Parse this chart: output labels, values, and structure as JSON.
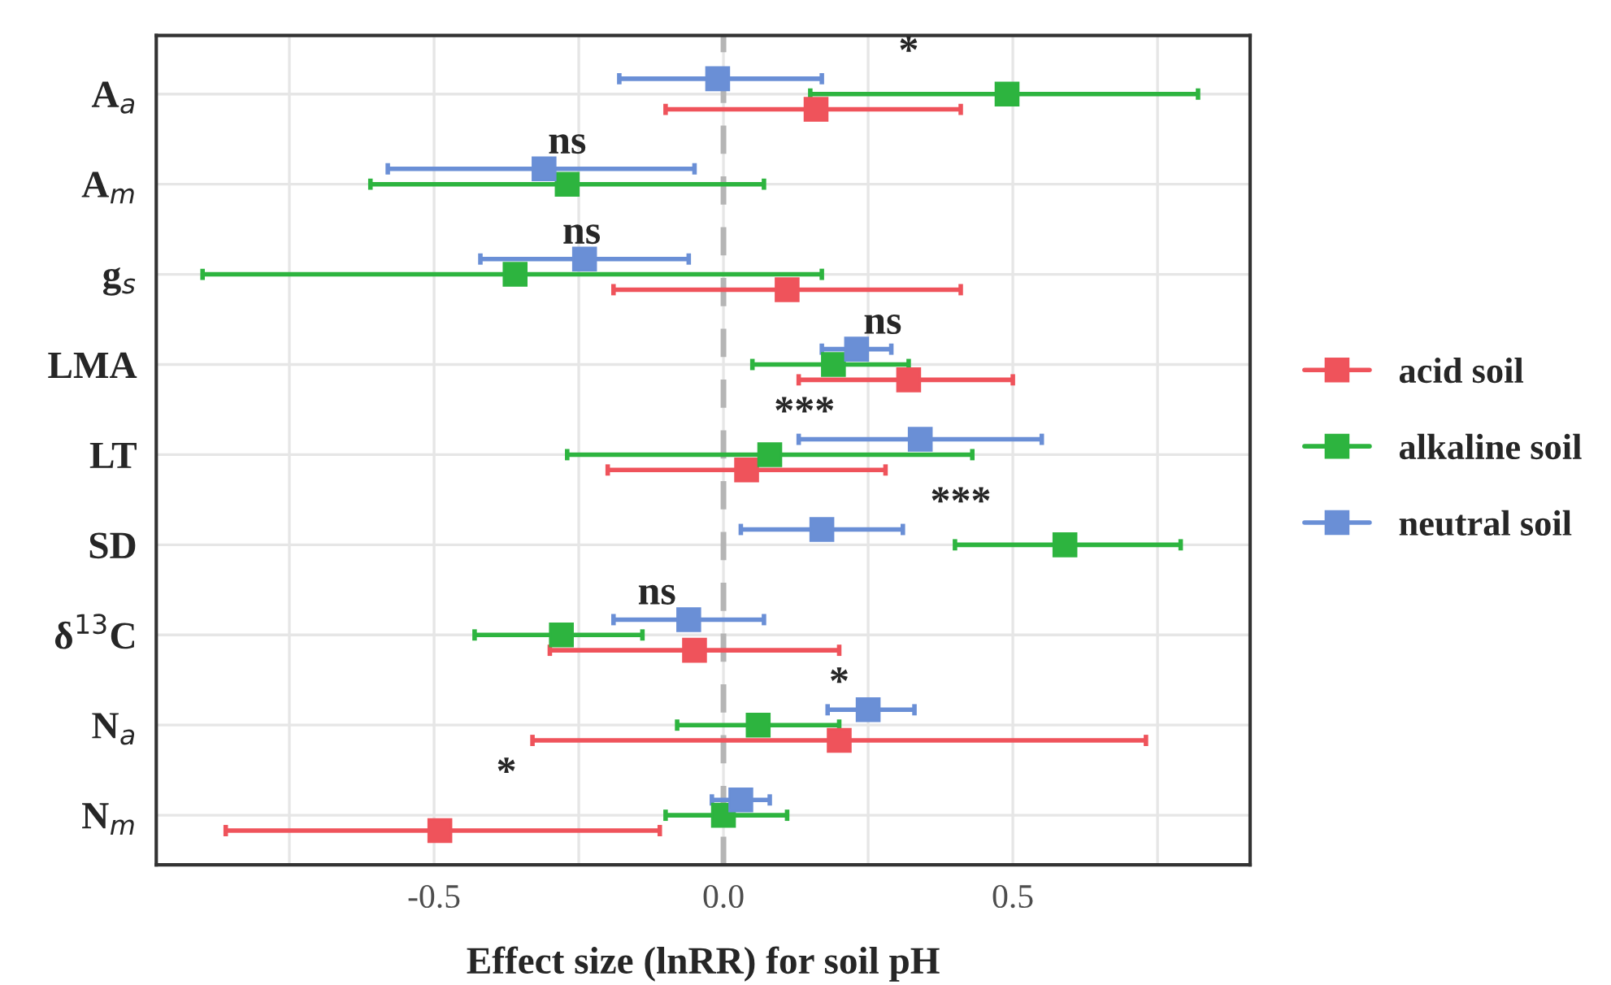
{
  "chart_data": {
    "type": "scatter",
    "orientation": "horizontal",
    "xlabel": "Effect size (lnRR) for soil pH",
    "categories": [
      "A$_{a}$",
      "A$_{m}$",
      "g$_{s}$",
      "LMA",
      "LT",
      "SD",
      "δ$^{13}$C",
      "N$_{a}$",
      "N$_{m}$"
    ],
    "series": [
      {
        "name": "acid soil",
        "color": "#ef535b",
        "values": [
          0.16,
          null,
          0.11,
          0.32,
          0.04,
          null,
          -0.05,
          0.2,
          -0.49
        ],
        "errors": [
          [
            -0.1,
            0.41
          ],
          null,
          [
            -0.19,
            0.41
          ],
          [
            0.13,
            0.5
          ],
          [
            -0.2,
            0.28
          ],
          null,
          [
            -0.3,
            0.2
          ],
          [
            -0.33,
            0.73
          ],
          [
            -0.86,
            -0.11
          ]
        ]
      },
      {
        "name": "alkaline soil",
        "color": "#2db43f",
        "values": [
          0.49,
          -0.27,
          -0.36,
          0.19,
          0.08,
          0.59,
          -0.28,
          0.06,
          0.0
        ],
        "errors": [
          [
            0.15,
            0.82
          ],
          [
            -0.61,
            0.07
          ],
          [
            -0.9,
            0.17
          ],
          [
            0.05,
            0.32
          ],
          [
            -0.27,
            0.43
          ],
          [
            0.4,
            0.79
          ],
          [
            -0.43,
            -0.14
          ],
          [
            -0.08,
            0.2
          ],
          [
            -0.1,
            0.11
          ]
        ]
      },
      {
        "name": "neutral soil",
        "color": "#6a8fd6",
        "values": [
          -0.01,
          -0.31,
          -0.24,
          0.23,
          0.34,
          0.17,
          -0.06,
          0.25,
          0.03
        ],
        "errors": [
          [
            -0.18,
            0.17
          ],
          [
            -0.58,
            -0.05
          ],
          [
            -0.42,
            -0.06
          ],
          [
            0.17,
            0.29
          ],
          [
            0.13,
            0.55
          ],
          [
            0.03,
            0.31
          ],
          [
            -0.19,
            0.07
          ],
          [
            0.18,
            0.33
          ],
          [
            -0.02,
            0.08
          ]
        ]
      }
    ],
    "xlim": [
      -0.98,
      0.91
    ],
    "xticks": [
      {
        "value": -0.75,
        "label": null
      },
      {
        "value": -0.5,
        "label": "-0.5"
      },
      {
        "value": -0.25,
        "label": null
      },
      {
        "value": 0,
        "label": "0.0"
      },
      {
        "value": 0.25,
        "label": null
      },
      {
        "value": 0.5,
        "label": "0.5"
      },
      {
        "value": 0.75,
        "label": null
      }
    ],
    "ref_lines": [
      {
        "axis": "x",
        "value": 0,
        "color": "#b5b5b5",
        "line_style": "dashed"
      }
    ],
    "annotations": [
      "*",
      "ns",
      "ns",
      "ns",
      "***",
      "***",
      "ns",
      "*",
      "*"
    ],
    "grid": true,
    "legend": "right",
    "marker": "square"
  }
}
